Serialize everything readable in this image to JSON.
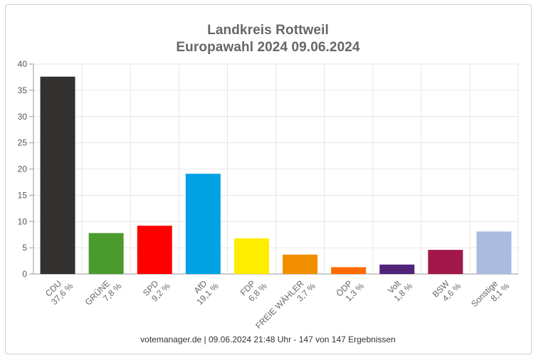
{
  "chart_data": {
    "type": "bar",
    "title": "Landkreis Rottweil",
    "subtitle": "Europawahl 2024 09.06.2024",
    "categories": [
      "CDU",
      "GRÜNE",
      "SPD",
      "AfD",
      "FDP",
      "FREIE WÄHLER",
      "ÖDP",
      "Volt",
      "BSW",
      "Sonstige"
    ],
    "values": [
      37.6,
      7.8,
      9.2,
      19.1,
      6.8,
      3.7,
      1.3,
      1.8,
      4.6,
      8.1
    ],
    "value_labels": [
      "37,6 %",
      "7,8 %",
      "9,2 %",
      "19,1 %",
      "6,8 %",
      "3,7 %",
      "1,3 %",
      "1,8 %",
      "4,6 %",
      "8,1 %"
    ],
    "colors": [
      "#333130",
      "#4a9a2e",
      "#ff0000",
      "#00a2e4",
      "#ffed00",
      "#f28f00",
      "#ff6a00",
      "#502379",
      "#a2184b",
      "#aabbe0"
    ],
    "ylim": [
      0,
      40
    ],
    "yticks": [
      0,
      5,
      10,
      15,
      20,
      25,
      30,
      35,
      40
    ],
    "grid": true,
    "legend": "none",
    "footer": "votemanager.de | 09.06.2024 21:48 Uhr - 147 von 147 Ergebnissen"
  }
}
